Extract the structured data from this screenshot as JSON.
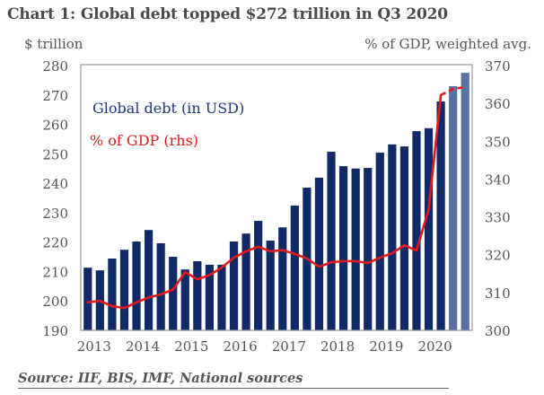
{
  "header": {
    "title": "Chart 1: Global debt topped $272 trillion in Q3 2020",
    "left_unit": "$ trillion",
    "right_unit": "% of GDP, weighted avg."
  },
  "footer": {
    "source": "Source: IIF, BIS, IMF, National sources"
  },
  "colors": {
    "bar": "#0f2a66",
    "bar_estimate": "#5a71a3",
    "line": "#e3191b",
    "label_debt": "#1f3a78",
    "label_gdp": "#e3191b"
  },
  "chart_data": {
    "type": "bar",
    "title": "Chart 1: Global debt topped $272 trillion in Q3 2020",
    "xlabel": "",
    "ylabel": "$ trillion",
    "ylabel_right": "% of GDP, weighted avg.",
    "ylim": [
      190,
      280
    ],
    "ylim_right": [
      300,
      370
    ],
    "yticks": [
      190,
      200,
      210,
      220,
      230,
      240,
      250,
      260,
      270,
      280
    ],
    "yticks_right": [
      300,
      310,
      320,
      330,
      340,
      350,
      360,
      370
    ],
    "x_tick_labels": [
      "2013",
      "2014",
      "2015",
      "2016",
      "2017",
      "2018",
      "2019",
      "2020"
    ],
    "grid": false,
    "legend_position": "top-left",
    "categories": [
      "2013Q1",
      "2013Q2",
      "2013Q3",
      "2013Q4",
      "2014Q1",
      "2014Q2",
      "2014Q3",
      "2014Q4",
      "2015Q1",
      "2015Q2",
      "2015Q3",
      "2015Q4",
      "2016Q1",
      "2016Q2",
      "2016Q3",
      "2016Q4",
      "2017Q1",
      "2017Q2",
      "2017Q3",
      "2017Q4",
      "2018Q1",
      "2018Q2",
      "2018Q3",
      "2018Q4",
      "2019Q1",
      "2019Q2",
      "2019Q3",
      "2019Q4",
      "2020Q1",
      "2020Q2",
      "2020Q3",
      "2020Q4"
    ],
    "series": [
      {
        "name": "Global debt (in USD)",
        "axis": "left",
        "type": "bar",
        "values": [
          211.3,
          210.4,
          214.4,
          217.4,
          220.2,
          224.1,
          219.6,
          215.0,
          210.7,
          213.5,
          212.3,
          212.3,
          220.2,
          222.9,
          227.2,
          220.5,
          225.0,
          232.4,
          238.5,
          241.9,
          250.7,
          245.8,
          245.0,
          245.2,
          250.4,
          253.2,
          252.5,
          257.7,
          258.7,
          267.8,
          273.0,
          277.5
        ],
        "estimate_from_index": 30
      },
      {
        "name": "% of GDP (rhs)",
        "axis": "right",
        "type": "line",
        "values": [
          307.4,
          307.8,
          306.4,
          305.9,
          307.4,
          308.7,
          309.5,
          310.8,
          315.4,
          313.5,
          314.6,
          316.6,
          319.2,
          320.9,
          322.1,
          320.9,
          321.2,
          320.2,
          319.0,
          316.8,
          318.0,
          318.3,
          318.3,
          317.8,
          319.2,
          320.4,
          322.5,
          321.1,
          332.0,
          362.2,
          363.8,
          364.3
        ],
        "dashed_from_index": 30
      }
    ]
  }
}
